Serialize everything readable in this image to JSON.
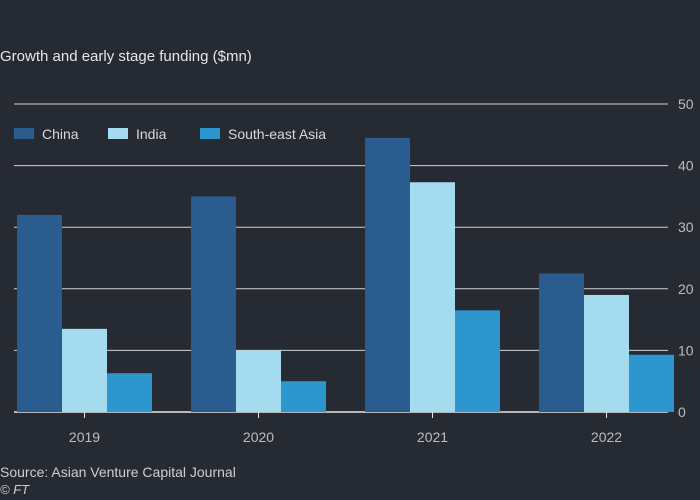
{
  "chart_data": {
    "type": "bar",
    "title": "",
    "subtitle": "Growth and early stage funding ($mn)",
    "xlabel": "",
    "ylabel": "",
    "categories": [
      "2019",
      "2020",
      "2021",
      "2022"
    ],
    "series": [
      {
        "name": "China",
        "color": "#2b5c8f",
        "values": [
          32,
          35,
          44.5,
          22.5
        ]
      },
      {
        "name": "India",
        "color": "#a5dbee",
        "values": [
          13.5,
          10,
          37.3,
          19
        ]
      },
      {
        "name": "South-east Asia",
        "color": "#2d96cf",
        "values": [
          6.3,
          5,
          16.5,
          9.3
        ]
      }
    ],
    "ylim": [
      0,
      50
    ],
    "yticks": [
      0,
      10,
      20,
      30,
      40,
      50
    ],
    "grid": true,
    "legend": "top-left"
  },
  "footer": {
    "source": "Source: Asian Venture Capital Journal",
    "credit": "© FT"
  }
}
